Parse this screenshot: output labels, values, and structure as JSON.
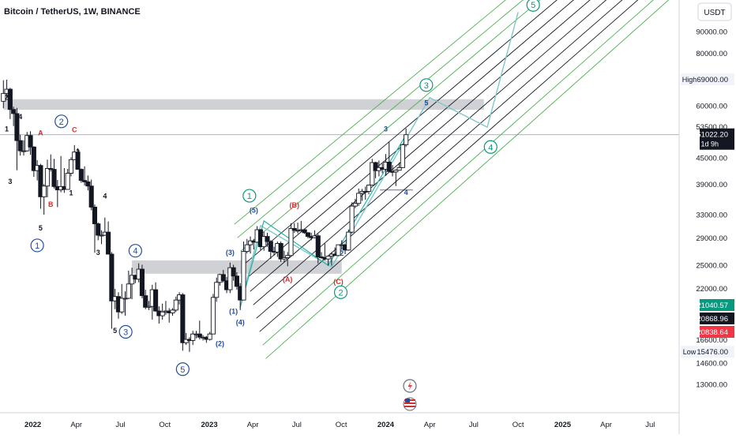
{
  "header": {
    "symbol_title": "Bitcoin / TetherUS, 1W, BINANCE",
    "currency": "USDT"
  },
  "colors": {
    "candle_up": "#131722",
    "candle_down": "#131722",
    "channel_green": "#4caf50",
    "channel_black": "#131722",
    "zone_gray": "#c8c9cc",
    "wave_blue": "#1e4ea6",
    "wave_teal": "#0a9a7a",
    "wave_red": "#d32f2f",
    "projection_line": "#7fc8c8",
    "price_last": "#131722",
    "price_green": "#089981",
    "price_red": "#f23645"
  },
  "price_axis": {
    "ticks": [
      "90000.00",
      "80000.00",
      "60000.00",
      "53500.00",
      "45000.00",
      "39000.00",
      "33000.00",
      "29000.00",
      "25000.00",
      "22000.00",
      "16600.00",
      "14600.00",
      "13000.00"
    ],
    "high_label": "High",
    "high_value": "69000.00",
    "low_label": "Low",
    "low_value": "15476.00",
    "last_price": "51022.20",
    "countdown": "1d 9h",
    "tag_green": "21040.57",
    "tag_black": "20868.96",
    "tag_red": "20838.64"
  },
  "time_axis": {
    "labels": [
      "2022",
      "Apr",
      "Jul",
      "Oct",
      "2023",
      "Apr",
      "Jul",
      "Oct",
      "2024",
      "Apr",
      "Jul",
      "Oct",
      "2025",
      "Apr",
      "Jul"
    ]
  },
  "wave_labels": [
    {
      "text": "2",
      "color": "black"
    },
    {
      "text": "1",
      "color": "black"
    },
    {
      "text": "4",
      "color": "black"
    },
    {
      "text": "3",
      "color": "black"
    },
    {
      "text": "A",
      "color": "red"
    },
    {
      "text": "C",
      "color": "red"
    },
    {
      "text": "2",
      "color": "black"
    },
    {
      "text": "1",
      "color": "black"
    },
    {
      "text": "B",
      "color": "red"
    },
    {
      "text": "5",
      "color": "black"
    },
    {
      "text": "4",
      "color": "black"
    },
    {
      "text": "3",
      "color": "black"
    },
    {
      "text": "5",
      "color": "black"
    },
    {
      "text": "(1)",
      "color": "blue"
    },
    {
      "text": "(2)",
      "color": "blue"
    },
    {
      "text": "(3)",
      "color": "blue"
    },
    {
      "text": "(4)",
      "color": "blue"
    },
    {
      "text": "(5)",
      "color": "blue"
    },
    {
      "text": "(A)",
      "color": "red"
    },
    {
      "text": "(B)",
      "color": "red"
    },
    {
      "text": "(C)",
      "color": "red"
    },
    {
      "text": "2",
      "color": "blue"
    },
    {
      "text": "3",
      "color": "blue"
    },
    {
      "text": "4",
      "color": "blue"
    },
    {
      "text": "5",
      "color": "blue"
    }
  ],
  "circled_labels": [
    {
      "text": "2",
      "color": "blue"
    },
    {
      "text": "1",
      "color": "blue"
    },
    {
      "text": "4",
      "color": "blue"
    },
    {
      "text": "3",
      "color": "blue"
    },
    {
      "text": "5",
      "color": "blue"
    },
    {
      "text": "1",
      "color": "teal"
    },
    {
      "text": "2",
      "color": "teal"
    },
    {
      "text": "3",
      "color": "teal"
    },
    {
      "text": "4",
      "color": "teal"
    },
    {
      "text": "5",
      "color": "teal"
    }
  ],
  "chart_data": {
    "type": "candlestick",
    "title": "Bitcoin / TetherUS, 1W, BINANCE",
    "scale": "log",
    "ylim": [
      12000,
      100000
    ],
    "x_range": [
      "2021-10-25",
      "2025-08-30"
    ],
    "ohlc": [
      [
        "2021-11-01",
        61300,
        68800,
        59000,
        64000
      ],
      [
        "2021-11-08",
        64000,
        69000,
        62500,
        65500
      ],
      [
        "2021-11-15",
        65500,
        66000,
        55600,
        58600
      ],
      [
        "2021-11-22",
        58600,
        59500,
        53500,
        57300
      ],
      [
        "2021-11-29",
        57300,
        59100,
        42000,
        49400
      ],
      [
        "2021-12-06",
        49400,
        51000,
        45500,
        46700
      ],
      [
        "2021-12-13",
        46700,
        49500,
        45500,
        46700
      ],
      [
        "2021-12-20",
        46700,
        51800,
        46500,
        50800
      ],
      [
        "2021-12-27",
        50800,
        52000,
        45700,
        47700
      ],
      [
        "2022-01-03",
        47700,
        47900,
        40500,
        41900
      ],
      [
        "2022-01-10",
        41900,
        44400,
        39700,
        43100
      ],
      [
        "2022-01-17",
        43100,
        43500,
        34000,
        36300
      ],
      [
        "2022-01-24",
        36300,
        38900,
        32900,
        38500
      ],
      [
        "2022-01-31",
        38500,
        44500,
        36200,
        42400
      ],
      [
        "2022-02-07",
        42400,
        45800,
        41700,
        42200
      ],
      [
        "2022-02-14",
        42200,
        44700,
        38000,
        38400
      ],
      [
        "2022-02-21",
        38400,
        39800,
        34300,
        37700
      ],
      [
        "2022-02-28",
        37700,
        45400,
        37200,
        38400
      ],
      [
        "2022-03-07",
        38400,
        42500,
        37100,
        37800
      ],
      [
        "2022-03-14",
        37800,
        42300,
        38100,
        41300
      ],
      [
        "2022-03-21",
        41300,
        45100,
        40600,
        44500
      ],
      [
        "2022-03-28",
        44500,
        48200,
        44400,
        46400
      ],
      [
        "2022-04-04",
        46400,
        47400,
        42100,
        42200
      ],
      [
        "2022-04-11",
        42200,
        42400,
        39200,
        39700
      ],
      [
        "2022-04-18",
        39700,
        42900,
        38600,
        39400
      ],
      [
        "2022-04-25",
        39400,
        40800,
        37600,
        38500
      ],
      [
        "2022-05-02",
        38500,
        39900,
        33700,
        34300
      ],
      [
        "2022-05-09",
        34300,
        34800,
        26700,
        31300
      ],
      [
        "2022-05-16",
        31300,
        31500,
        28600,
        29400
      ],
      [
        "2022-05-23",
        29400,
        30200,
        28000,
        29400
      ],
      [
        "2022-05-30",
        29400,
        32400,
        29300,
        29900
      ],
      [
        "2022-06-06",
        29900,
        31700,
        26500,
        26500
      ],
      [
        "2022-06-13",
        26500,
        26800,
        17600,
        20500
      ],
      [
        "2022-06-20",
        20500,
        21900,
        19600,
        21000
      ],
      [
        "2022-06-27",
        21000,
        21500,
        18600,
        19300
      ],
      [
        "2022-07-04",
        19300,
        22500,
        19100,
        20800
      ],
      [
        "2022-07-11",
        20800,
        21600,
        18900,
        20800
      ],
      [
        "2022-07-18",
        20800,
        24200,
        20700,
        22500
      ],
      [
        "2022-07-25",
        22500,
        24600,
        20700,
        23600
      ],
      [
        "2022-08-01",
        23600,
        23700,
        22600,
        23100
      ],
      [
        "2022-08-08",
        23100,
        25200,
        22700,
        24400
      ],
      [
        "2022-08-15",
        24400,
        25000,
        20800,
        21100
      ],
      [
        "2022-08-22",
        21100,
        21800,
        19600,
        19800
      ],
      [
        "2022-08-29",
        19800,
        20500,
        19500,
        19900
      ],
      [
        "2022-09-05",
        19900,
        22400,
        18500,
        21800
      ],
      [
        "2022-09-12",
        21800,
        22700,
        19300,
        19400
      ],
      [
        "2022-09-19",
        19400,
        19900,
        18100,
        18900
      ],
      [
        "2022-09-26",
        18900,
        20200,
        18500,
        19300
      ],
      [
        "2022-10-03",
        19300,
        20500,
        19000,
        19400
      ],
      [
        "2022-10-10",
        19400,
        19700,
        18200,
        19200
      ],
      [
        "2022-10-17",
        19200,
        19700,
        18900,
        19500
      ],
      [
        "2022-10-24",
        19500,
        21000,
        19300,
        20600
      ],
      [
        "2022-10-31",
        20600,
        21500,
        20100,
        21200
      ],
      [
        "2022-11-07",
        21200,
        21400,
        15600,
        16300
      ],
      [
        "2022-11-14",
        16300,
        17200,
        16100,
        16600
      ],
      [
        "2022-11-21",
        16600,
        16800,
        15500,
        16500
      ],
      [
        "2022-11-28",
        16500,
        17400,
        16100,
        17100
      ],
      [
        "2022-12-05",
        17100,
        17400,
        16700,
        17100
      ],
      [
        "2022-12-12",
        17100,
        18400,
        16600,
        16800
      ],
      [
        "2022-12-19",
        16800,
        17000,
        16500,
        16800
      ],
      [
        "2022-12-26",
        16800,
        16900,
        16300,
        16600
      ],
      [
        "2023-01-02",
        16600,
        17300,
        16500,
        17100
      ],
      [
        "2023-01-09",
        17100,
        21300,
        17100,
        20900
      ],
      [
        "2023-01-16",
        20900,
        23300,
        20400,
        22700
      ],
      [
        "2023-01-23",
        22700,
        23800,
        22300,
        23700
      ],
      [
        "2023-01-30",
        23700,
        24300,
        22700,
        22900
      ],
      [
        "2023-02-06",
        22900,
        23400,
        21400,
        21800
      ],
      [
        "2023-02-13",
        21800,
        25300,
        21400,
        24600
      ],
      [
        "2023-02-20",
        24600,
        25000,
        22900,
        23500
      ],
      [
        "2023-02-27",
        23500,
        24000,
        21800,
        22200
      ],
      [
        "2023-03-06",
        22200,
        22600,
        19500,
        20600
      ],
      [
        "2023-03-13",
        20600,
        28400,
        20700,
        26900
      ],
      [
        "2023-03-20",
        26900,
        28800,
        26600,
        27900
      ],
      [
        "2023-03-27",
        27900,
        29200,
        26600,
        28500
      ],
      [
        "2023-04-03",
        28500,
        28800,
        27200,
        28300
      ],
      [
        "2023-04-10",
        28300,
        30900,
        28200,
        30300
      ],
      [
        "2023-04-17",
        30300,
        30400,
        27100,
        27600
      ],
      [
        "2023-04-24",
        27600,
        30000,
        27000,
        29200
      ],
      [
        "2023-05-01",
        29200,
        29800,
        27600,
        28400
      ],
      [
        "2023-05-08",
        28400,
        28600,
        25800,
        26900
      ],
      [
        "2023-05-15",
        26900,
        27600,
        26300,
        26800
      ],
      [
        "2023-05-22",
        26800,
        28400,
        26100,
        28100
      ],
      [
        "2023-05-29",
        28100,
        28400,
        25400,
        25800
      ],
      [
        "2023-06-05",
        25800,
        27000,
        25400,
        26000
      ],
      [
        "2023-06-12",
        26000,
        26800,
        24800,
        26300
      ],
      [
        "2023-06-19",
        26300,
        31400,
        26200,
        30500
      ],
      [
        "2023-06-26",
        30500,
        31400,
        29800,
        30200
      ],
      [
        "2023-07-03",
        30200,
        31500,
        29700,
        30200
      ],
      [
        "2023-07-10",
        30200,
        31800,
        29900,
        30300
      ],
      [
        "2023-07-17",
        30300,
        30400,
        29600,
        29800
      ],
      [
        "2023-07-24",
        29800,
        29900,
        28900,
        29200
      ],
      [
        "2023-07-31",
        29200,
        29800,
        28600,
        29000
      ],
      [
        "2023-08-07",
        29000,
        30200,
        28900,
        29300
      ],
      [
        "2023-08-14",
        29300,
        29600,
        25200,
        26100
      ],
      [
        "2023-08-21",
        26100,
        26800,
        25800,
        26000
      ],
      [
        "2023-08-28",
        26000,
        28100,
        25600,
        25800
      ],
      [
        "2023-09-04",
        25800,
        26100,
        24900,
        26200
      ],
      [
        "2023-09-11",
        26200,
        26800,
        24900,
        26500
      ],
      [
        "2023-09-18",
        26500,
        27500,
        26300,
        26300
      ],
      [
        "2023-09-25",
        26300,
        27900,
        26200,
        27900
      ],
      [
        "2023-10-02",
        27900,
        28600,
        27200,
        27900
      ],
      [
        "2023-10-09",
        27900,
        28000,
        26500,
        27100
      ],
      [
        "2023-10-16",
        27100,
        30300,
        27000,
        29900
      ],
      [
        "2023-10-23",
        29900,
        35200,
        29700,
        34500
      ],
      [
        "2023-10-30",
        34500,
        35900,
        34100,
        35000
      ],
      [
        "2023-11-06",
        35000,
        38000,
        34500,
        37000
      ],
      [
        "2023-11-13",
        37000,
        37900,
        35500,
        37400
      ],
      [
        "2023-11-20",
        37400,
        38400,
        35700,
        37400
      ],
      [
        "2023-11-27",
        37400,
        38800,
        36800,
        38700
      ],
      [
        "2023-12-04",
        38700,
        44700,
        38700,
        43800
      ],
      [
        "2023-12-11",
        43800,
        44000,
        40200,
        41900
      ],
      [
        "2023-12-18",
        41900,
        44300,
        40600,
        42600
      ],
      [
        "2023-12-25",
        42600,
        43600,
        41300,
        42200
      ],
      [
        "2024-01-01",
        42200,
        45900,
        40700,
        43900
      ],
      [
        "2024-01-08",
        43900,
        49000,
        41500,
        41700
      ],
      [
        "2024-01-15",
        41700,
        43200,
        40600,
        41600
      ],
      [
        "2024-01-22",
        41600,
        42200,
        38500,
        42000
      ],
      [
        "2024-01-29",
        42000,
        43800,
        41900,
        42600
      ],
      [
        "2024-02-05",
        42600,
        48600,
        42500,
        48300
      ],
      [
        "2024-02-12",
        48300,
        52800,
        47700,
        51022
      ]
    ],
    "series": [
      {
        "name": "High",
        "values": [
          69000
        ]
      },
      {
        "name": "Low",
        "values": [
          15476
        ]
      }
    ],
    "annotations": {
      "horizontal_zones": [
        {
          "from": "2021-11-01",
          "to": "2024-07-22",
          "low": 58500,
          "high": 62000
        },
        {
          "from": "2022-07-25",
          "to": "2023-10-02",
          "low": 23800,
          "high": 25600
        }
      ],
      "support_line": {
        "from": "2023-12-20",
        "to": "2024-02-26",
        "value": 37700
      },
      "pitchfork_anchors": [
        {
          "date": "2023-03-10",
          "price": 19800
        },
        {
          "date": "2023-06-15",
          "price": 29700
        },
        {
          "date": "2023-09-05",
          "price": 24000
        }
      ],
      "wave_circle_2_2023_low": 16000,
      "projection_path": [
        {
          "date": "2023-03-06",
          "price": 19800
        },
        {
          "date": "2023-04-17",
          "price": 31000
        },
        {
          "date": "2023-09-11",
          "price": 24700
        },
        {
          "date": "2024-04-01",
          "price": 62500
        },
        {
          "date": "2024-07-29",
          "price": 53200
        },
        {
          "date": "2024-10-01",
          "price": 100000
        }
      ],
      "teal_path": [
        {
          "date": "2023-03-06",
          "price": 19800
        },
        {
          "date": "2023-04-24",
          "price": 31800
        },
        {
          "date": "2023-09-04",
          "price": 24900
        },
        {
          "date": "2024-02-12",
          "price": 51000
        }
      ],
      "wave_positions": [
        {
          "date": "2021-11-08",
          "price": 61800
        },
        {
          "date": "2021-11-08",
          "price": 52000
        },
        {
          "date": "2021-12-06",
          "price": 55600
        },
        {
          "date": "2021-11-15",
          "price": 39000
        },
        {
          "date": "2022-01-17",
          "price": 50800
        },
        {
          "date": "2022-03-28",
          "price": 51700
        },
        {
          "date": "2022-04-04",
          "price": 45800
        },
        {
          "date": "2022-03-21",
          "price": 36600
        },
        {
          "date": "2022-02-07",
          "price": 34400
        },
        {
          "date": "2022-01-17",
          "price": 30200
        },
        {
          "date": "2022-05-30",
          "price": 36000
        },
        {
          "date": "2022-05-16",
          "price": 26400
        },
        {
          "date": "2022-06-20",
          "price": 17200
        },
        {
          "date": "2023-02-20",
          "price": 19100
        },
        {
          "date": "2023-01-23",
          "price": 16000
        },
        {
          "date": "2023-02-13",
          "price": 26400
        },
        {
          "date": "2023-03-06",
          "price": 18000
        },
        {
          "date": "2023-04-03",
          "price": 33300
        },
        {
          "date": "2023-06-12",
          "price": 22800
        },
        {
          "date": "2023-06-26",
          "price": 34200
        },
        {
          "date": "2023-09-25",
          "price": 22500
        },
        {
          "date": "2023-10-02",
          "price": 26300
        },
        {
          "date": "2024-01-01",
          "price": 52000
        },
        {
          "date": "2024-02-12",
          "price": 36700
        },
        {
          "date": "2024-03-25",
          "price": 60000
        }
      ],
      "circled_positions": [
        {
          "date": "2022-03-01",
          "price": 54900
        },
        {
          "date": "2022-01-10",
          "price": 27800
        },
        {
          "date": "2022-08-01",
          "price": 27000
        },
        {
          "date": "2022-07-12",
          "price": 17300
        },
        {
          "date": "2022-11-07",
          "price": 14100
        },
        {
          "date": "2023-03-25",
          "price": 36500
        },
        {
          "date": "2023-09-30",
          "price": 21500
        },
        {
          "date": "2024-03-25",
          "price": 67000
        },
        {
          "date": "2024-08-05",
          "price": 47700
        },
        {
          "date": "2024-11-01",
          "price": 104000
        }
      ]
    }
  }
}
